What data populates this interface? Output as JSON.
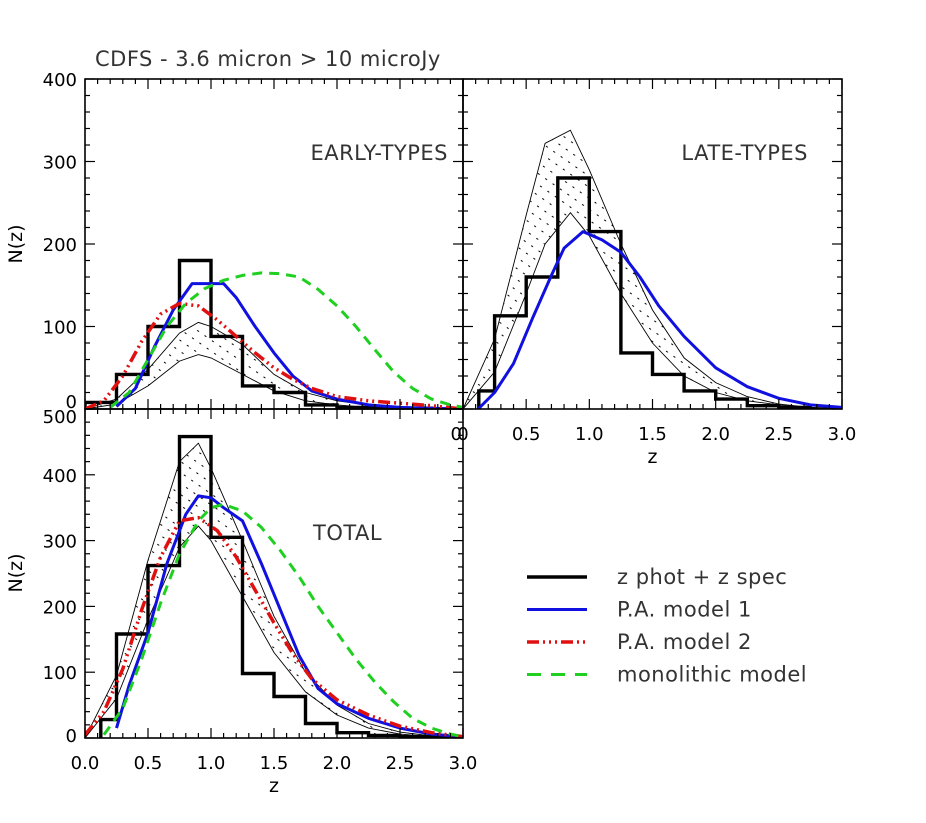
{
  "figure": {
    "title": "CDFS - 3.6 micron > 10 microJy"
  },
  "colors": {
    "histogram": "#000000",
    "pa_model_1": "#1010e0",
    "pa_model_2": "#e01010",
    "monolithic": "#20d020",
    "band": "#000000"
  },
  "legend": {
    "placement": "lower-right",
    "entries": [
      {
        "key": "hist",
        "label": "z phot + z spec"
      },
      {
        "key": "pa1",
        "label": "P.A. model 1"
      },
      {
        "key": "pa2",
        "label": "P.A. model 2"
      },
      {
        "key": "mono",
        "label": "monolithic model"
      }
    ]
  },
  "chart_data": [
    {
      "id": "early",
      "type": "line",
      "panel_label": "EARLY-TYPES",
      "xlabel": "",
      "ylabel": "N(z)",
      "xlim": [
        0,
        3
      ],
      "ylim": [
        0,
        400
      ],
      "xticks": [
        0,
        0.5,
        1.0,
        1.5,
        2.0,
        2.5,
        3.0
      ],
      "xtick_labels": [
        "",
        "",
        "",
        "",
        "",
        "",
        "0"
      ],
      "yticks": [
        0,
        100,
        200,
        300,
        400
      ],
      "ytick_labels": [
        "0",
        "100",
        "200",
        "300",
        "400"
      ],
      "histogram": {
        "edges": [
          0,
          0.25,
          0.5,
          0.75,
          1.0,
          1.25,
          1.5,
          1.75,
          2.0,
          2.25,
          2.5,
          2.75,
          3.0
        ],
        "counts": [
          8,
          42,
          100,
          180,
          88,
          28,
          20,
          5,
          2,
          1,
          1,
          0
        ]
      },
      "band": {
        "x": [
          0,
          0.25,
          0.5,
          0.75,
          0.9,
          1.0,
          1.25,
          1.5,
          1.75,
          2.0,
          2.25,
          2.5,
          2.75,
          3.0
        ],
        "lower": [
          0,
          6,
          28,
          58,
          66,
          62,
          42,
          22,
          10,
          5,
          2,
          1,
          0,
          0
        ],
        "upper": [
          0,
          12,
          48,
          92,
          105,
          100,
          78,
          42,
          20,
          10,
          5,
          2,
          1,
          0
        ]
      },
      "series": [
        {
          "key": "pa1",
          "name": "P.A. model 1",
          "x": [
            0.25,
            0.4,
            0.55,
            0.7,
            0.85,
            1.0,
            1.1,
            1.2,
            1.35,
            1.5,
            1.65,
            1.8,
            2.0,
            2.25,
            2.5,
            2.75,
            3.0
          ],
          "y": [
            3,
            25,
            75,
            120,
            152,
            152,
            152,
            135,
            100,
            68,
            40,
            22,
            12,
            5,
            2,
            1,
            0
          ]
        },
        {
          "key": "pa2",
          "name": "P.A. model 2",
          "x": [
            0,
            0.15,
            0.3,
            0.45,
            0.6,
            0.75,
            0.9,
            1.05,
            1.2,
            1.35,
            1.5,
            1.65,
            1.8,
            2.0,
            2.25,
            2.5,
            2.75,
            3.0
          ],
          "y": [
            0,
            10,
            40,
            82,
            115,
            128,
            125,
            108,
            88,
            68,
            50,
            36,
            25,
            15,
            10,
            7,
            4,
            0
          ]
        },
        {
          "key": "mono",
          "name": "monolithic model",
          "x": [
            0.2,
            0.35,
            0.5,
            0.65,
            0.8,
            0.95,
            1.1,
            1.25,
            1.4,
            1.55,
            1.7,
            1.85,
            2.0,
            2.15,
            2.3,
            2.45,
            2.6,
            2.75,
            2.9,
            3.0
          ],
          "y": [
            2,
            20,
            60,
            100,
            128,
            146,
            156,
            162,
            165,
            164,
            160,
            145,
            125,
            100,
            72,
            45,
            25,
            12,
            5,
            2
          ]
        }
      ]
    },
    {
      "id": "late",
      "type": "line",
      "panel_label": "LATE-TYPES",
      "xlabel": "z",
      "ylabel": "",
      "xlim": [
        0,
        3
      ],
      "ylim": [
        0,
        400
      ],
      "xticks": [
        0,
        0.5,
        1.0,
        1.5,
        2.0,
        2.5,
        3.0
      ],
      "xtick_labels": [
        "0",
        "0.5",
        "1.0",
        "1.5",
        "2.0",
        "2.5",
        "3.0"
      ],
      "yticks": [
        0,
        100,
        200,
        300,
        400
      ],
      "ytick_labels": [
        "",
        "",
        "",
        "",
        ""
      ],
      "histogram": {
        "edges": [
          0.125,
          0.25,
          0.5,
          0.75,
          1.0,
          1.25,
          1.5,
          1.75,
          2.0,
          2.25,
          2.5,
          2.75,
          3.0
        ],
        "counts": [
          22,
          113,
          160,
          280,
          215,
          68,
          42,
          22,
          12,
          4,
          2,
          0
        ]
      },
      "band": {
        "x": [
          0,
          0.25,
          0.5,
          0.65,
          0.85,
          1.0,
          1.25,
          1.5,
          1.75,
          2.0,
          2.25,
          2.5,
          2.75,
          3.0
        ],
        "lower": [
          0,
          45,
          140,
          200,
          238,
          210,
          140,
          80,
          40,
          20,
          10,
          5,
          2,
          0
        ],
        "upper": [
          0,
          85,
          235,
          322,
          338,
          290,
          200,
          120,
          62,
          32,
          15,
          6,
          2,
          0
        ]
      },
      "series": [
        {
          "key": "pa1",
          "name": "P.A. model 1",
          "x": [
            0.12,
            0.25,
            0.4,
            0.55,
            0.7,
            0.8,
            0.95,
            1.1,
            1.25,
            1.4,
            1.55,
            1.75,
            2.0,
            2.25,
            2.5,
            2.75,
            3.0
          ],
          "y": [
            0,
            20,
            55,
            110,
            162,
            195,
            215,
            205,
            190,
            160,
            125,
            88,
            50,
            27,
            13,
            5,
            2
          ]
        }
      ]
    },
    {
      "id": "total",
      "type": "line",
      "panel_label": "TOTAL",
      "xlabel": "z",
      "ylabel": "N(z)",
      "xlim": [
        0,
        3
      ],
      "ylim": [
        0,
        500
      ],
      "xticks": [
        0,
        0.5,
        1.0,
        1.5,
        2.0,
        2.5,
        3.0
      ],
      "xtick_labels": [
        "0.0",
        "0.5",
        "1.0",
        "1.5",
        "2.0",
        "2.5",
        "3.0"
      ],
      "yticks": [
        0,
        100,
        200,
        300,
        400,
        500
      ],
      "ytick_labels": [
        "0",
        "100",
        "200",
        "300",
        "400",
        "500"
      ],
      "histogram": {
        "edges": [
          0.125,
          0.25,
          0.5,
          0.75,
          1.0,
          1.25,
          1.5,
          1.75,
          2.0,
          2.25,
          2.5,
          2.75,
          3.0
        ],
        "counts": [
          28,
          158,
          262,
          458,
          305,
          98,
          63,
          22,
          8,
          4,
          2,
          1
        ]
      },
      "band": {
        "x": [
          0,
          0.25,
          0.5,
          0.75,
          0.9,
          1.0,
          1.25,
          1.5,
          1.75,
          2.0,
          2.25,
          2.5,
          2.75,
          3.0
        ],
        "lower": [
          0,
          60,
          180,
          290,
          322,
          300,
          215,
          130,
          70,
          35,
          15,
          6,
          2,
          0
        ],
        "upper": [
          0,
          95,
          270,
          420,
          448,
          410,
          300,
          185,
          100,
          50,
          22,
          9,
          3,
          0
        ]
      },
      "series": [
        {
          "key": "pa1",
          "name": "P.A. model 1",
          "x": [
            0.25,
            0.35,
            0.5,
            0.65,
            0.8,
            0.9,
            1.0,
            1.1,
            1.25,
            1.4,
            1.55,
            1.7,
            1.85,
            2.0,
            2.25,
            2.5,
            2.75,
            3.0
          ],
          "y": [
            15,
            80,
            160,
            265,
            340,
            368,
            365,
            350,
            330,
            265,
            195,
            125,
            75,
            52,
            30,
            15,
            6,
            2
          ]
        },
        {
          "key": "pa2",
          "name": "P.A. model 2",
          "x": [
            0,
            0.15,
            0.3,
            0.45,
            0.6,
            0.75,
            0.9,
            1.05,
            1.2,
            1.35,
            1.5,
            1.65,
            1.8,
            2.0,
            2.25,
            2.5,
            2.75,
            3.0
          ],
          "y": [
            5,
            40,
            105,
            195,
            275,
            330,
            335,
            315,
            275,
            225,
            175,
            128,
            90,
            58,
            35,
            18,
            8,
            2
          ]
        },
        {
          "key": "mono",
          "name": "monolithic model",
          "x": [
            0.15,
            0.3,
            0.45,
            0.6,
            0.75,
            0.9,
            1.0,
            1.1,
            1.25,
            1.4,
            1.55,
            1.7,
            1.85,
            2.0,
            2.15,
            2.3,
            2.45,
            2.6,
            2.75,
            2.9,
            3.0
          ],
          "y": [
            5,
            45,
            120,
            205,
            280,
            330,
            350,
            355,
            345,
            320,
            285,
            245,
            200,
            160,
            120,
            85,
            55,
            30,
            15,
            6,
            2
          ]
        }
      ]
    }
  ]
}
